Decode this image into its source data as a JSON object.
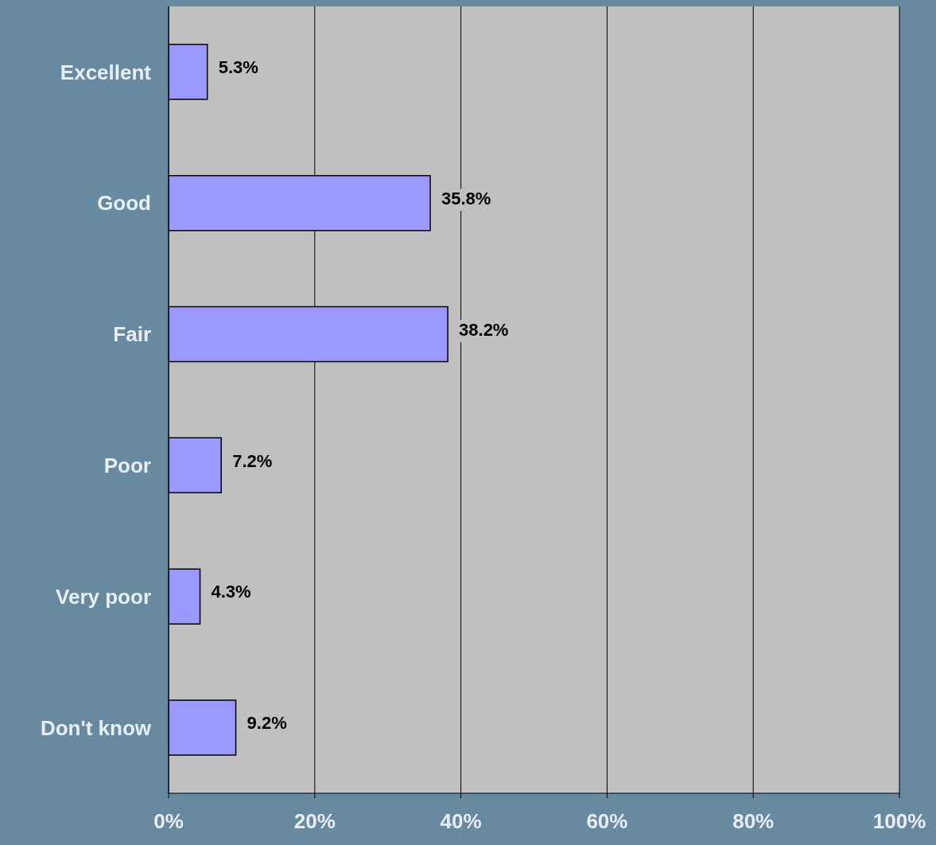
{
  "chart_data": {
    "type": "bar",
    "orientation": "horizontal",
    "categories": [
      "Excellent",
      "Good",
      "Fair",
      "Poor",
      "Very poor",
      "Don't know"
    ],
    "values": [
      5.3,
      35.8,
      38.2,
      7.2,
      4.3,
      9.2
    ],
    "value_labels": [
      "5.3%",
      "35.8%",
      "38.2%",
      "7.2%",
      "4.3%",
      "9.2%"
    ],
    "color": "#9999ff",
    "xlim": [
      0,
      100
    ],
    "xticks": [
      {
        "value": 0,
        "label": "0%"
      },
      {
        "value": 20,
        "label": "20%"
      },
      {
        "value": 40,
        "label": "40%"
      },
      {
        "value": 60,
        "label": "60%"
      },
      {
        "value": 80,
        "label": "80%"
      },
      {
        "value": 100,
        "label": "100%"
      }
    ],
    "grid": "x",
    "legend": false
  }
}
